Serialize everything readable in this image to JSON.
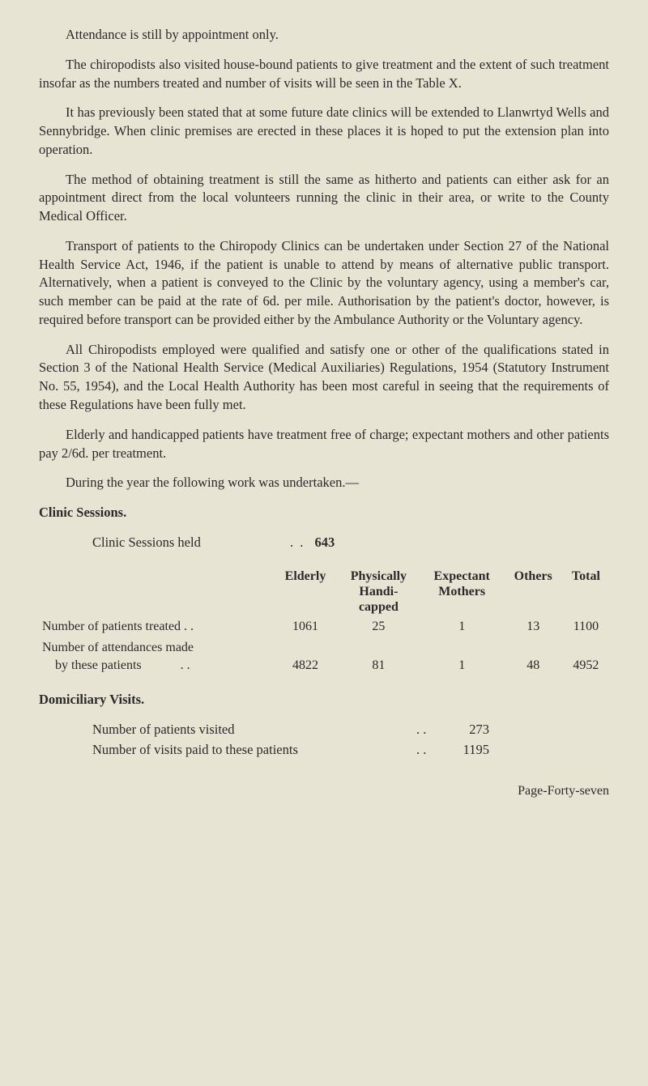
{
  "paragraphs": {
    "p1": "Attendance is still by appointment only.",
    "p2": "The chiropodists also visited house-bound patients to give treatment and the extent of such treatment insofar as the numbers treated and number of visits will be seen in the Table X.",
    "p3": "It has previously been stated that at some future date clinics will be extended to Llanwrtyd Wells and Sennybridge. When clinic premises are erected in these places it is hoped to put the extension plan into operation.",
    "p4": "The method of obtaining treatment is still the same as hitherto and patients can either ask for an appointment direct from the local volunteers running the clinic in their area, or write to the County Medical Officer.",
    "p5": "Transport of patients to the Chiropody Clinics can be undertaken under Section 27 of the National Health Service Act, 1946, if the patient is unable to attend by means of alternative public transport. Alternatively, when a patient is conveyed to the Clinic by the voluntary agency, using a member's car, such member can be paid at the rate of 6d. per mile. Authorisation by the patient's doctor, however, is required before transport can be provided either by the Ambulance Authority or the Voluntary agency.",
    "p6": "All Chiropodists employed were qualified and satisfy one or other of the qualifications stated in Section 3 of the National Health Service (Medical Auxiliaries) Regulations, 1954 (Statutory Instrument No. 55, 1954), and the Local Health Authority has been most careful in seeing that the requirements of these Regulations have been fully met.",
    "p7": "Elderly and handicapped patients have treatment free of charge; expectant mothers and other patients pay 2/6d. per treatment.",
    "p8": "During the year the following work was undertaken.—"
  },
  "sections": {
    "clinic_heading": "Clinic Sessions.",
    "clinic_sessions_label": "Clinic Sessions held",
    "clinic_sessions_value": "643",
    "domiciliary_heading": "Domiciliary Visits."
  },
  "table": {
    "headers": {
      "elderly": "Elderly",
      "physically_l1": "Physically",
      "physically_l2": "Handi-",
      "physically_l3": "capped",
      "expectant_l1": "Expectant",
      "expectant_l2": "Mothers",
      "others": "Others",
      "total": "Total"
    },
    "row1": {
      "label": "Number of patients treated . .",
      "elderly": "1061",
      "physically": "25",
      "expectant": "1",
      "others": "13",
      "total": "1100"
    },
    "row2": {
      "label_l1": "Number of attendances made",
      "label_l2": "by these patients",
      "label_dots": ". .",
      "elderly": "4822",
      "physically": "81",
      "expectant": "1",
      "others": "48",
      "total": "4952"
    }
  },
  "domiciliary": {
    "line1_label": "Number of patients visited",
    "line1_dots": ". .",
    "line1_value": "273",
    "line2_label": "Number of visits paid to these patients",
    "line2_dots": ". .",
    "line2_value": "1195"
  },
  "footer": "Page-Forty-seven"
}
